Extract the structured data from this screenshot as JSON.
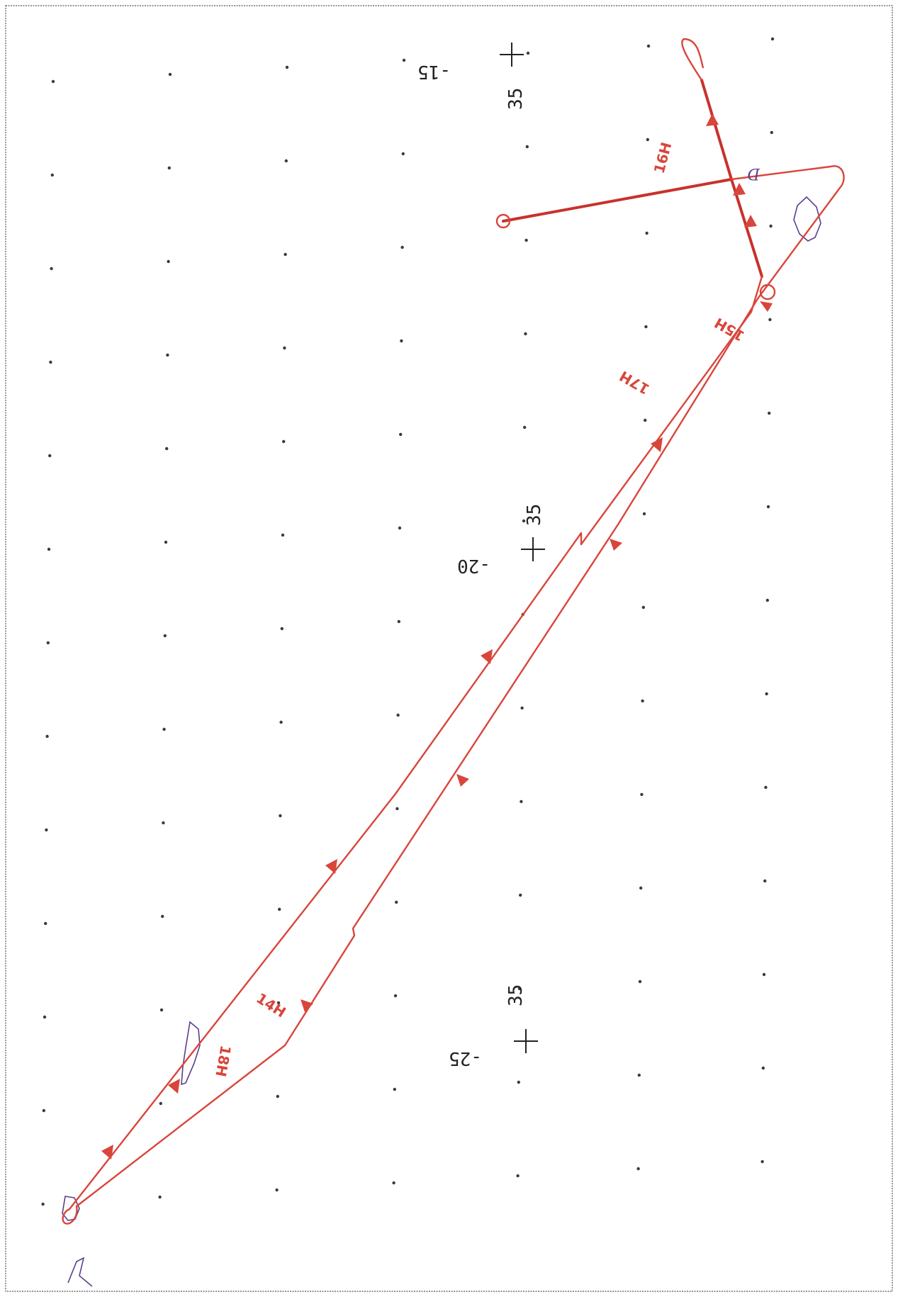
{
  "map": {
    "coordinate_marks": [
      {
        "lon_label": "-15",
        "lat_label": "35"
      },
      {
        "lon_label": "-20",
        "lat_label": "35"
      },
      {
        "lon_label": "-25",
        "lat_label": "35"
      }
    ],
    "hour_labels": [
      "16H",
      "15H",
      "17H",
      "14H",
      "18H"
    ],
    "marker_label": "D",
    "colors": {
      "track": "#d9453b",
      "contour": "#5a3f8c",
      "grid": "#3a3a3a"
    }
  }
}
